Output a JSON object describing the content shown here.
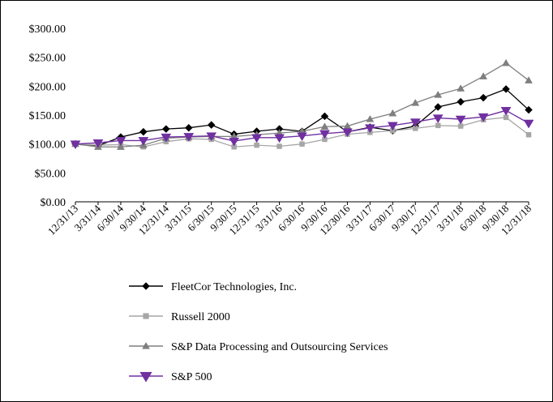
{
  "chart_data": {
    "type": "line",
    "title": "",
    "xlabel": "",
    "ylabel": "",
    "categories": [
      "12/31/13",
      "3/31/14",
      "6/30/14",
      "9/30/14",
      "12/31/14",
      "3/31/15",
      "6/30/15",
      "9/30/15",
      "12/31/15",
      "3/31/16",
      "6/30/16",
      "9/30/16",
      "12/30/16",
      "3/31/17",
      "6/30/17",
      "9/30/17",
      "12/31/17",
      "3/31/18",
      "6/30/18",
      "9/30/18",
      "12/31/18"
    ],
    "y_ticks": [
      "$0.00",
      "$50.00",
      "$100.00",
      "$150.00",
      "$200.00",
      "$250.00",
      "$300.00"
    ],
    "ylim": [
      0,
      300
    ],
    "grid": false,
    "legend_position": "bottom",
    "series": [
      {
        "name": "FleetCor Technologies, Inc.",
        "color": "#000000",
        "marker": "diamond",
        "values": [
          100,
          97,
          112,
          121,
          126,
          128,
          133,
          117,
          122,
          126,
          122,
          148,
          121,
          129,
          123,
          131,
          164,
          173,
          180,
          195,
          159
        ]
      },
      {
        "name": "Russell 2000",
        "color": "#a6a6a6",
        "marker": "square",
        "values": [
          100,
          98,
          99,
          95,
          104,
          109,
          108,
          95,
          98,
          96,
          100,
          108,
          117,
          120,
          123,
          127,
          132,
          131,
          142,
          146,
          116
        ]
      },
      {
        "name": "S&P Data Processing and Outsourcing Services",
        "color": "#7f7f7f",
        "marker": "triangle-up",
        "values": [
          100,
          95,
          95,
          98,
          110,
          112,
          113,
          113,
          116,
          119,
          122,
          130,
          131,
          143,
          153,
          171,
          185,
          196,
          217,
          240,
          210
        ]
      },
      {
        "name": "S&P 500",
        "color": "#7030a0",
        "marker": "triangle-down",
        "values": [
          100,
          102,
          106,
          106,
          112,
          113,
          114,
          105,
          111,
          111,
          114,
          118,
          121,
          128,
          132,
          138,
          145,
          143,
          147,
          158,
          136
        ]
      }
    ]
  }
}
